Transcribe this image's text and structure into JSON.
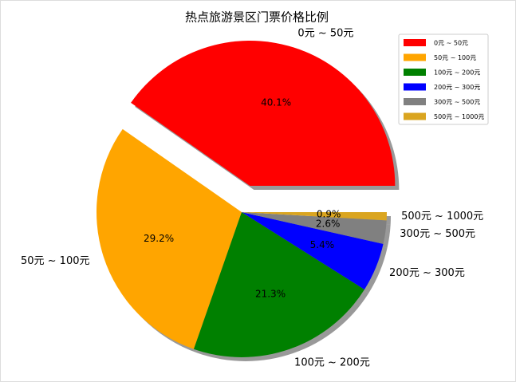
{
  "chart_data": {
    "type": "pie",
    "title": "热点旅游景区门票价格比例",
    "categories": [
      "0元 ~ 50元",
      "50元 ~ 100元",
      "100元 ~ 200元",
      "200元 ~ 300元",
      "300元 ~ 500元",
      "500元 ~ 1000元"
    ],
    "values": [
      40.1,
      29.2,
      21.3,
      5.4,
      2.6,
      0.9
    ],
    "value_labels": [
      "40.1%",
      "29.2%",
      "21.3%",
      "5.4%",
      "2.6%",
      "0.9%"
    ],
    "colors": [
      "#ff0000",
      "#ffa500",
      "#008000",
      "#0000ff",
      "#808080",
      "#daa520"
    ],
    "shadow": true,
    "legend": "upper right"
  }
}
